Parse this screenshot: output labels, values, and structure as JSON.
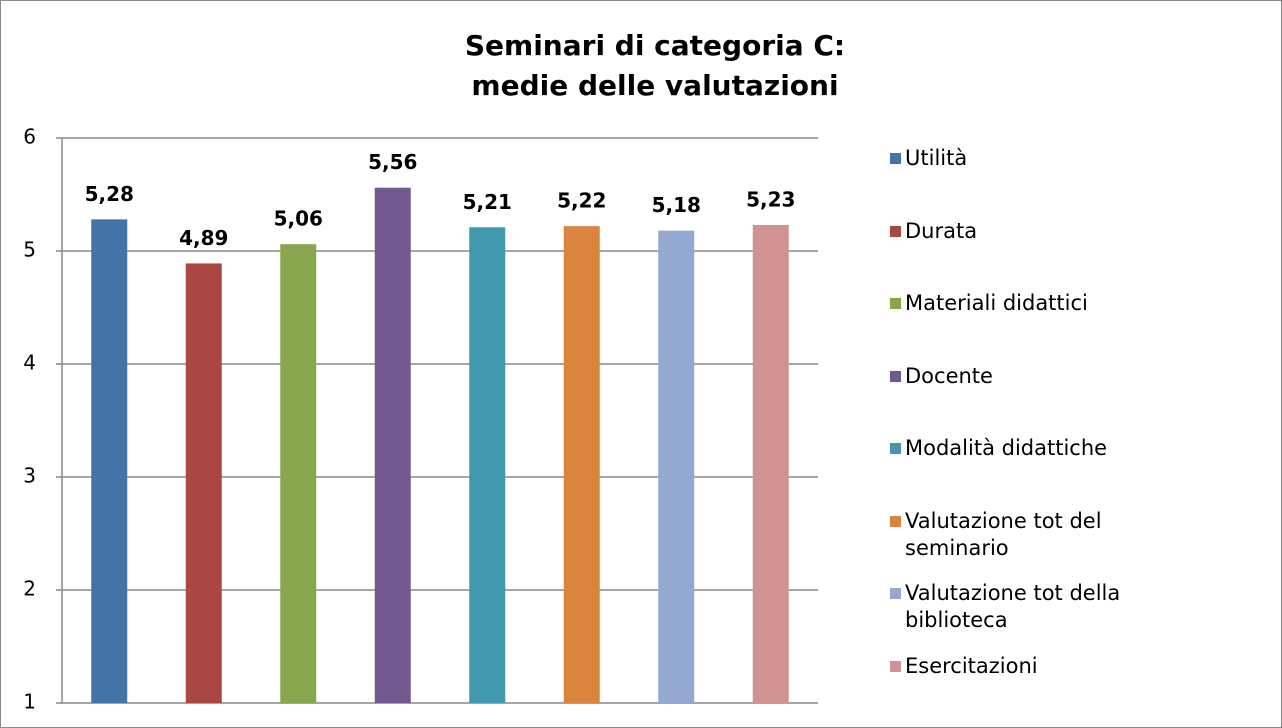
{
  "chart_data": {
    "type": "bar",
    "title": [
      "Seminari di categoria C:",
      "medie delle valutazioni"
    ],
    "series": [
      {
        "name": "Utilità",
        "color": "#4572a7",
        "values": [
          5.28
        ],
        "value_labels": [
          "5,28"
        ]
      },
      {
        "name": "Durata",
        "color": "#aa4643",
        "values": [
          4.89
        ],
        "value_labels": [
          "4,89"
        ]
      },
      {
        "name": "Materiali didattici",
        "color": "#89a54e",
        "values": [
          5.06
        ],
        "value_labels": [
          "5,06"
        ]
      },
      {
        "name": "Docente",
        "color": "#71588f",
        "values": [
          5.56
        ],
        "value_labels": [
          "5,56"
        ]
      },
      {
        "name": "Modalità didattiche",
        "color": "#4198af",
        "values": [
          5.21
        ],
        "value_labels": [
          "5,21"
        ]
      },
      {
        "name": "Valutazione tot del seminario",
        "color": "#db843d",
        "values": [
          5.22
        ],
        "value_labels": [
          "5,22"
        ]
      },
      {
        "name": "Valutazione tot della biblioteca",
        "color": "#93a9cf",
        "values": [
          5.18
        ],
        "value_labels": [
          "5,18"
        ]
      },
      {
        "name": "Esercitazioni",
        "color": "#d19392",
        "values": [
          5.23
        ],
        "value_labels": [
          "5,23"
        ]
      }
    ],
    "ylim": [
      1,
      6
    ],
    "yticks": [
      1,
      2,
      3,
      4,
      5,
      6
    ],
    "grid": true,
    "legend": "right"
  }
}
